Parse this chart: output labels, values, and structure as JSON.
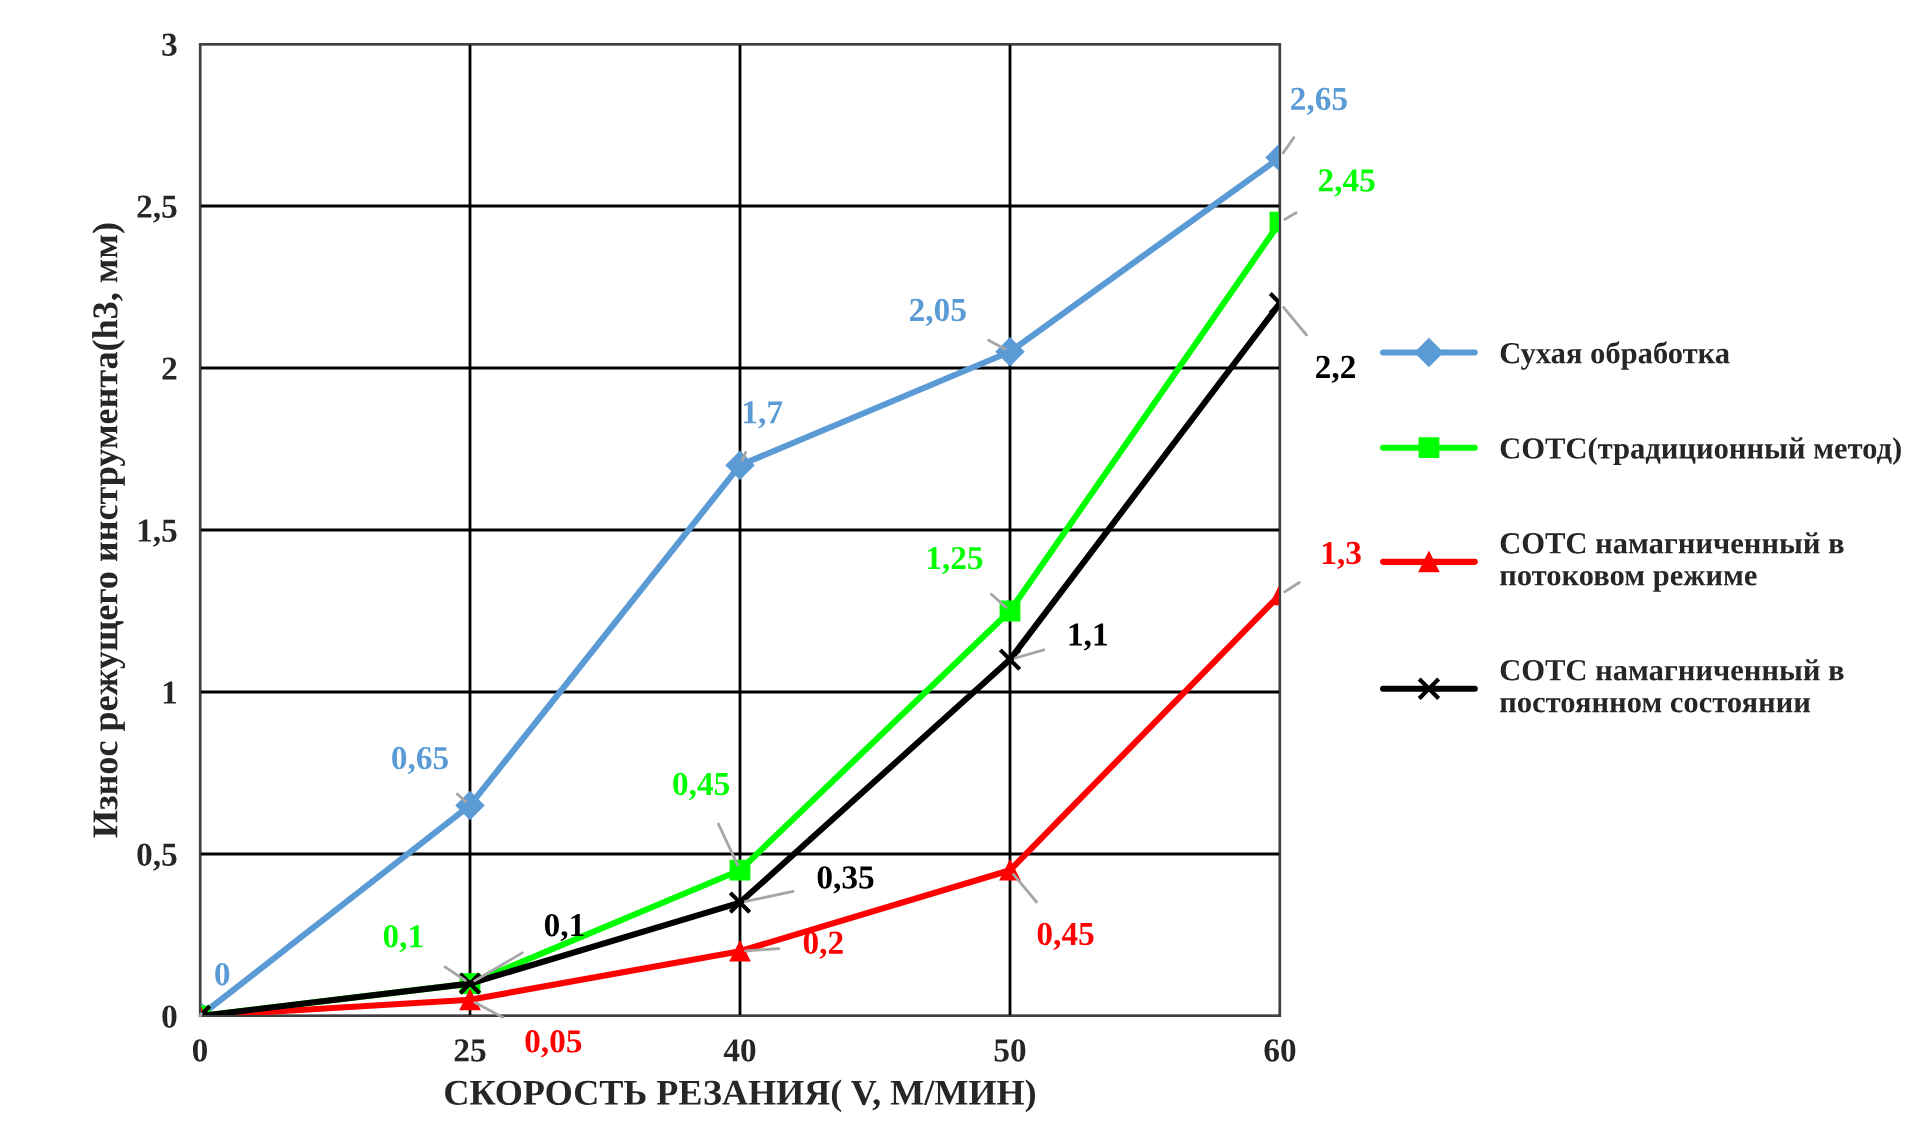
{
  "chart_data": {
    "type": "line",
    "xlabel": "СКОРОСТЬ РЕЗАНИЯ( V, М/МИН)",
    "ylabel": "Износ режущего инструмента(h3, мм)",
    "categories": [
      "0",
      "25",
      "40",
      "50",
      "60"
    ],
    "series": [
      {
        "name": "Сухая обработка",
        "color": "#5b9bd5",
        "marker": "diamond",
        "values": [
          0,
          0.65,
          1.7,
          2.05,
          2.65
        ],
        "value_labels": [
          "0",
          "0,65",
          "1,7",
          "2,05",
          "2,65"
        ]
      },
      {
        "name": "СОТС(традиционный метод)",
        "color": "#00ff00",
        "marker": "square",
        "values": [
          0,
          0.1,
          0.45,
          1.25,
          2.45
        ],
        "value_labels": [
          null,
          "0,1",
          "0,45",
          "1,25",
          "2,45"
        ]
      },
      {
        "name": "СОТС намагниченный в\nпотоковом режиме",
        "color": "#ff0000",
        "marker": "triangle",
        "values": [
          0,
          0.05,
          0.2,
          0.45,
          1.3
        ],
        "value_labels": [
          null,
          "0,05",
          "0,2",
          "0,45",
          "1,3"
        ]
      },
      {
        "name": "СОТС намагниченный в\nпостоянном состоянии",
        "color": "#000000",
        "marker": "cross",
        "values": [
          0,
          0.1,
          0.35,
          1.1,
          2.2
        ],
        "value_labels": [
          null,
          "0,1",
          "0,35",
          "1,1",
          "2,2"
        ]
      }
    ],
    "ylim": [
      0,
      3
    ],
    "yticks": [
      {
        "value": 0,
        "label": "0"
      },
      {
        "value": 0.5,
        "label": "0,5"
      },
      {
        "value": 1,
        "label": "1"
      },
      {
        "value": 1.5,
        "label": "1,5"
      },
      {
        "value": 2,
        "label": "2"
      },
      {
        "value": 2.5,
        "label": "2,5"
      },
      {
        "value": 3,
        "label": "3"
      }
    ],
    "grid": true,
    "legend": "right"
  }
}
